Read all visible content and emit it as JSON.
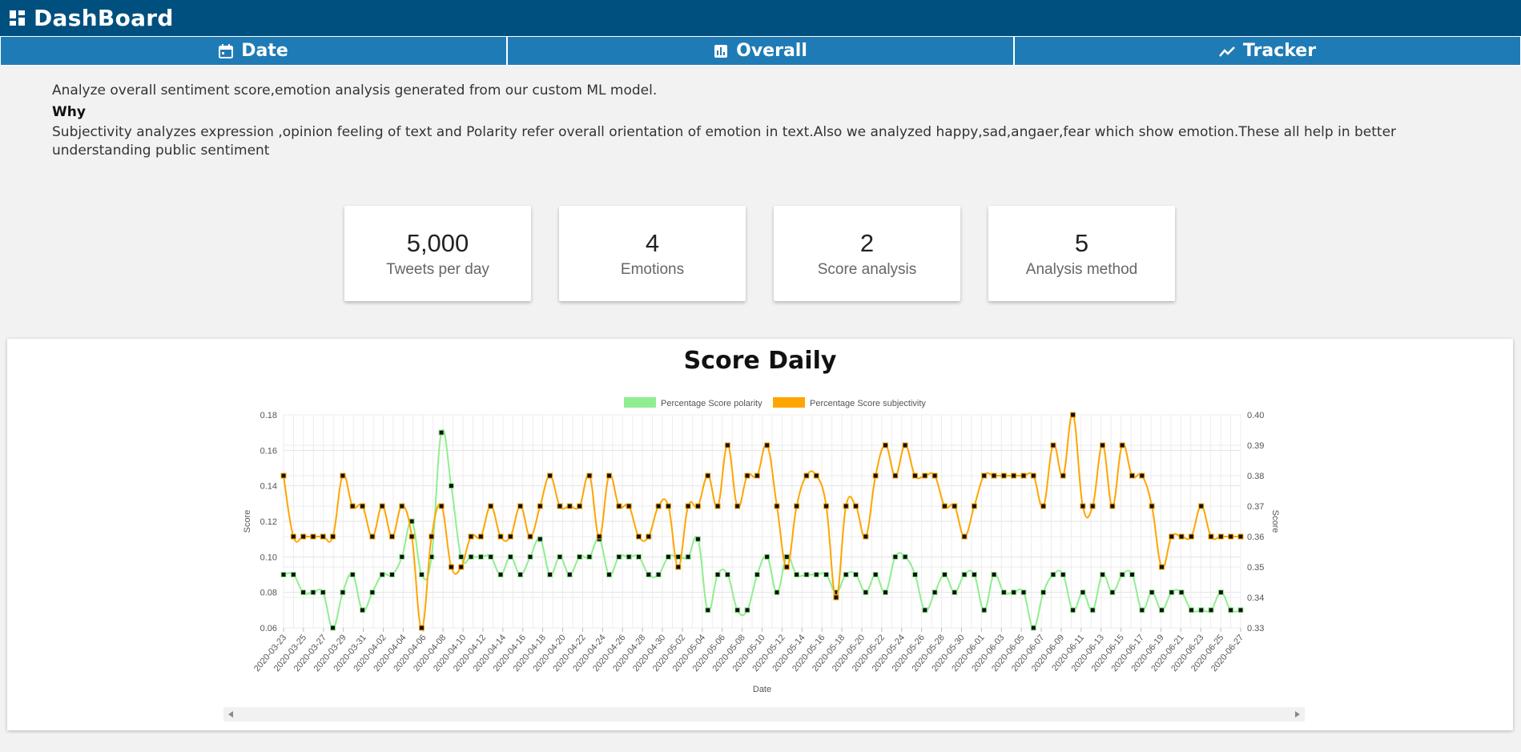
{
  "app": {
    "title": "DashBoard"
  },
  "tabs": [
    {
      "label": "Date",
      "icon": "calendar-icon"
    },
    {
      "label": "Overall",
      "icon": "bar-chart-icon"
    },
    {
      "label": "Tracker",
      "icon": "trend-line-icon"
    }
  ],
  "intro": {
    "line1": "Analyze overall sentiment score,emotion analysis generated from our custom ML model.",
    "why_heading": "Why",
    "line2": "Subjectivity analyzes expression ,opinion feeling of text and Polarity refer overall orientation of emotion in text.Also we analyzed happy,sad,angaer,fear which show emotion.These all help in better understanding public sentiment"
  },
  "cards": [
    {
      "value": "5,000",
      "label": "Tweets per day"
    },
    {
      "value": "4",
      "label": "Emotions"
    },
    {
      "value": "2",
      "label": "Score analysis"
    },
    {
      "value": "5",
      "label": "Analysis method"
    }
  ],
  "colors": {
    "header": "#00507f",
    "tab": "#1f7bb5",
    "polarity": "#90ee90",
    "subjectivity": "#ffa500"
  },
  "chart_data": {
    "type": "line",
    "title": "Score Daily",
    "xlabel": "Date",
    "ylabel": "Score",
    "y2label": "Score",
    "legend_position": "top",
    "grid": true,
    "ylim": [
      0.06,
      0.18
    ],
    "y2lim": [
      0.33,
      0.4
    ],
    "yticks": [
      "0.06",
      "0.08",
      "0.10",
      "0.12",
      "0.14",
      "0.16",
      "0.18"
    ],
    "y2ticks": [
      "0.33",
      "0.34",
      "0.35",
      "0.36",
      "0.37",
      "0.38",
      "0.39",
      "0.40"
    ],
    "x_start": "2020-03-23",
    "x_end": "2020-06-27",
    "xtick_labels": [
      "2020-03-23",
      "2020-03-25",
      "2020-03-27",
      "2020-03-29",
      "2020-03-31",
      "2020-04-02",
      "2020-04-04",
      "2020-04-06",
      "2020-04-08",
      "2020-04-10",
      "2020-04-12",
      "2020-04-14",
      "2020-04-16",
      "2020-04-18",
      "2020-04-20",
      "2020-04-22",
      "2020-04-24",
      "2020-04-26",
      "2020-04-28",
      "2020-04-30",
      "2020-05-02",
      "2020-05-04",
      "2020-05-06",
      "2020-05-08",
      "2020-05-10",
      "2020-05-12",
      "2020-05-14",
      "2020-05-16",
      "2020-05-18",
      "2020-05-20",
      "2020-05-22",
      "2020-05-24",
      "2020-05-26",
      "2020-05-28",
      "2020-05-30",
      "2020-06-01",
      "2020-06-03",
      "2020-06-05",
      "2020-06-07",
      "2020-06-09",
      "2020-06-11",
      "2020-06-13",
      "2020-06-15",
      "2020-06-17",
      "2020-06-19",
      "2020-06-21",
      "2020-06-23",
      "2020-06-25",
      "2020-06-27"
    ],
    "series": [
      {
        "name": "Percentage Score polarity",
        "axis": "left",
        "color": "#90ee90",
        "values": [
          0.09,
          0.09,
          0.08,
          0.08,
          0.08,
          0.06,
          0.08,
          0.09,
          0.07,
          0.08,
          0.09,
          0.09,
          0.1,
          0.12,
          0.09,
          0.1,
          0.17,
          0.14,
          0.1,
          0.1,
          0.1,
          0.1,
          0.09,
          0.1,
          0.09,
          0.1,
          0.11,
          0.09,
          0.1,
          0.09,
          0.1,
          0.1,
          0.11,
          0.09,
          0.1,
          0.1,
          0.1,
          0.09,
          0.09,
          0.1,
          0.1,
          0.1,
          0.11,
          0.07,
          0.09,
          0.09,
          0.07,
          0.07,
          0.09,
          0.1,
          0.08,
          0.1,
          0.09,
          0.09,
          0.09,
          0.09,
          0.08,
          0.09,
          0.09,
          0.08,
          0.09,
          0.08,
          0.1,
          0.1,
          0.09,
          0.07,
          0.08,
          0.09,
          0.08,
          0.09,
          0.09,
          0.07,
          0.09,
          0.08,
          0.08,
          0.08,
          0.06,
          0.08,
          0.09,
          0.09,
          0.07,
          0.08,
          0.07,
          0.09,
          0.08,
          0.09,
          0.09,
          0.07,
          0.08,
          0.07,
          0.08,
          0.08,
          0.07,
          0.07,
          0.07,
          0.08,
          0.07,
          0.07
        ]
      },
      {
        "name": "Percentage Score subjectivity",
        "axis": "right",
        "color": "#ffa500",
        "values": [
          0.38,
          0.36,
          0.36,
          0.36,
          0.36,
          0.36,
          0.38,
          0.37,
          0.37,
          0.36,
          0.37,
          0.36,
          0.37,
          0.36,
          0.33,
          0.36,
          0.37,
          0.35,
          0.35,
          0.36,
          0.36,
          0.37,
          0.36,
          0.36,
          0.37,
          0.36,
          0.37,
          0.38,
          0.37,
          0.37,
          0.37,
          0.38,
          0.36,
          0.38,
          0.37,
          0.37,
          0.36,
          0.36,
          0.37,
          0.37,
          0.35,
          0.37,
          0.37,
          0.38,
          0.37,
          0.39,
          0.37,
          0.38,
          0.38,
          0.39,
          0.37,
          0.35,
          0.37,
          0.38,
          0.38,
          0.37,
          0.34,
          0.37,
          0.37,
          0.36,
          0.38,
          0.39,
          0.38,
          0.39,
          0.38,
          0.38,
          0.38,
          0.37,
          0.37,
          0.36,
          0.37,
          0.38,
          0.38,
          0.38,
          0.38,
          0.38,
          0.38,
          0.37,
          0.39,
          0.38,
          0.4,
          0.37,
          0.37,
          0.39,
          0.37,
          0.39,
          0.38,
          0.38,
          0.37,
          0.35,
          0.36,
          0.36,
          0.36,
          0.37,
          0.36,
          0.36,
          0.36,
          0.36
        ]
      }
    ]
  }
}
